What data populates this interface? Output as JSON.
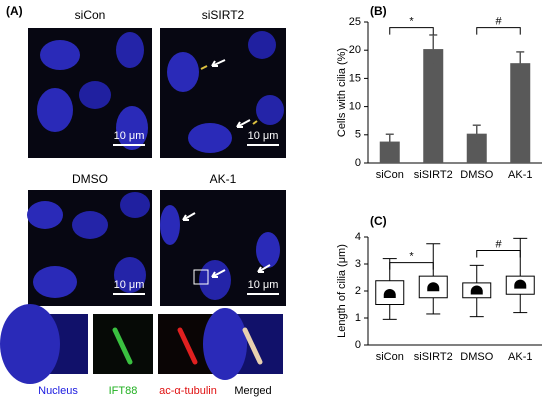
{
  "panel_a": {
    "label": "(A)",
    "conditions": [
      "siCon",
      "siSIRT2",
      "DMSO",
      "AK-1"
    ],
    "scale_bar": "10 μm",
    "channels": [
      "Nucleus",
      "IFT88",
      "ac-α-tubulin",
      "Merged"
    ]
  },
  "chart_data": [
    {
      "type": "bar",
      "label": "(B)",
      "y_label": "Cells with cilia (%)",
      "categories": [
        "siCon",
        "siSIRT2",
        "DMSO",
        "AK-1"
      ],
      "values": [
        3.8,
        20.2,
        5.2,
        17.7
      ],
      "errors": [
        1.3,
        2.5,
        1.5,
        2.0
      ],
      "color": "#595959",
      "ylim": [
        0,
        25
      ],
      "yticks": [
        0,
        5,
        10,
        15,
        20,
        25
      ],
      "annotations": [
        {
          "text": "*",
          "between": [
            0,
            1
          ],
          "y": 24
        },
        {
          "text": "#",
          "between": [
            2,
            3
          ],
          "y": 24
        }
      ]
    },
    {
      "type": "box",
      "label": "(C)",
      "y_label": "Length of cilia (μm)",
      "categories": [
        "siCon",
        "siSIRT2",
        "DMSO",
        "AK-1"
      ],
      "whisker_low": [
        0.95,
        1.15,
        1.05,
        1.2
      ],
      "q1": [
        1.5,
        1.75,
        1.75,
        1.88
      ],
      "q3": [
        2.38,
        2.55,
        2.3,
        2.55
      ],
      "whisker_high": [
        3.2,
        3.75,
        2.95,
        3.95
      ],
      "mean": [
        1.85,
        2.1,
        1.98,
        2.2
      ],
      "ylim": [
        0,
        4
      ],
      "yticks": [
        0,
        1,
        2,
        3,
        4
      ],
      "annotations": [
        {
          "text": "*",
          "between": [
            0,
            1
          ],
          "y": 3.05
        },
        {
          "text": "#",
          "between": [
            2,
            3
          ],
          "y": 3.5
        }
      ]
    }
  ]
}
